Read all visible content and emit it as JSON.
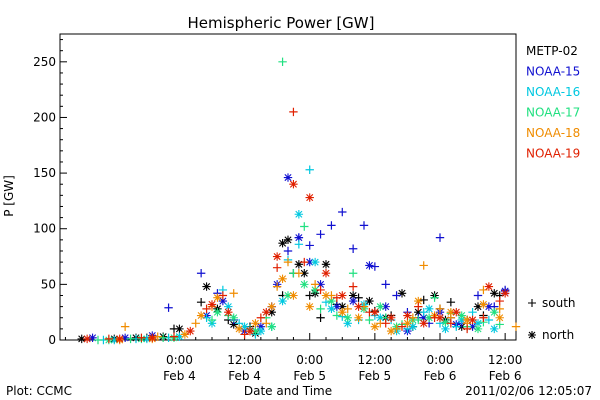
{
  "chart_data": {
    "type": "scatter",
    "title": "Hemispheric Power [GW]",
    "xlabel": "Date and Time",
    "ylabel": "P [GW]",
    "ylim": [
      0,
      275
    ],
    "xlim": [
      -22,
      62
    ],
    "x_unit": "hours since 2011-02-04 00:00",
    "y_ticks": [
      0,
      50,
      100,
      150,
      200,
      250
    ],
    "x_ticks": [
      {
        "x": 0,
        "time": "0:00",
        "date": "Feb 4"
      },
      {
        "x": 12,
        "time": "12:00",
        "date": "Feb 4"
      },
      {
        "x": 24,
        "time": "0:00",
        "date": "Feb 5"
      },
      {
        "x": 36,
        "time": "12:00",
        "date": "Feb 5"
      },
      {
        "x": 48,
        "time": "0:00",
        "date": "Feb 6"
      },
      {
        "x": 60,
        "time": "12:00",
        "date": "Feb 6"
      }
    ],
    "marker_legend": [
      {
        "symbol": "+",
        "label": "south"
      },
      {
        "symbol": "*",
        "label": "north"
      }
    ],
    "series": [
      {
        "name": "METP-02",
        "color": "#000000",
        "south": [
          [
            -6,
            2
          ],
          [
            -1,
            10
          ],
          [
            4,
            34
          ],
          [
            9,
            18
          ],
          [
            13,
            12
          ],
          [
            19,
            40
          ],
          [
            21,
            60
          ],
          [
            24,
            40
          ],
          [
            26,
            20
          ],
          [
            29,
            32
          ],
          [
            33,
            38
          ],
          [
            36,
            26
          ],
          [
            39,
            22
          ],
          [
            43,
            12
          ],
          [
            45,
            36
          ],
          [
            48,
            28
          ],
          [
            50,
            34
          ],
          [
            53,
            18
          ],
          [
            56,
            22
          ],
          [
            59,
            40
          ]
        ],
        "north": [
          [
            -18,
            1
          ],
          [
            -12,
            1
          ],
          [
            -8,
            2
          ],
          [
            -3,
            3
          ],
          [
            0,
            10
          ],
          [
            5,
            48
          ],
          [
            7,
            28
          ],
          [
            10,
            14
          ],
          [
            14,
            6
          ],
          [
            17,
            25
          ],
          [
            19,
            87
          ],
          [
            20,
            90
          ],
          [
            22,
            68
          ],
          [
            23,
            60
          ],
          [
            25,
            42
          ],
          [
            27,
            68
          ],
          [
            30,
            30
          ],
          [
            32,
            40
          ],
          [
            35,
            35
          ],
          [
            38,
            20
          ],
          [
            41,
            42
          ],
          [
            44,
            25
          ],
          [
            47,
            40
          ],
          [
            49,
            18
          ],
          [
            52,
            12
          ],
          [
            55,
            30
          ],
          [
            58,
            42
          ]
        ]
      },
      {
        "name": "NOAA-15",
        "color": "#1010d0",
        "south": [
          [
            -2,
            29
          ],
          [
            4,
            60
          ],
          [
            7,
            42
          ],
          [
            10,
            18
          ],
          [
            13,
            10
          ],
          [
            17,
            30
          ],
          [
            20,
            80
          ],
          [
            22,
            92
          ],
          [
            24,
            85
          ],
          [
            26,
            95
          ],
          [
            28,
            103
          ],
          [
            30,
            115
          ],
          [
            32,
            82
          ],
          [
            34,
            103
          ],
          [
            36,
            66
          ],
          [
            38,
            50
          ],
          [
            40,
            40
          ],
          [
            42,
            25
          ],
          [
            44,
            20
          ],
          [
            46,
            15
          ],
          [
            48,
            92
          ],
          [
            50,
            20
          ],
          [
            52,
            15
          ],
          [
            55,
            40
          ],
          [
            58,
            30
          ],
          [
            60,
            45
          ]
        ],
        "north": [
          [
            -16,
            2
          ],
          [
            -10,
            2
          ],
          [
            -5,
            4
          ],
          [
            5,
            22
          ],
          [
            8,
            35
          ],
          [
            12,
            8
          ],
          [
            15,
            12
          ],
          [
            18,
            50
          ],
          [
            20,
            146
          ],
          [
            22,
            92
          ],
          [
            24,
            70
          ],
          [
            26,
            50
          ],
          [
            29,
            30
          ],
          [
            32,
            35
          ],
          [
            35,
            67
          ],
          [
            38,
            30
          ],
          [
            42,
            8
          ],
          [
            45,
            20
          ],
          [
            48,
            25
          ],
          [
            51,
            14
          ],
          [
            54,
            12
          ],
          [
            57,
            30
          ],
          [
            60,
            44
          ]
        ]
      },
      {
        "name": "NOAA-16",
        "color": "#00c8e0",
        "south": [
          [
            -14,
            0
          ],
          [
            -8,
            1
          ],
          [
            -2,
            2
          ],
          [
            5,
            20
          ],
          [
            8,
            45
          ],
          [
            11,
            15
          ],
          [
            14,
            5
          ],
          [
            17,
            12
          ],
          [
            20,
            72
          ],
          [
            22,
            86
          ],
          [
            24,
            153
          ],
          [
            27,
            34
          ],
          [
            30,
            21
          ],
          [
            33,
            18
          ],
          [
            36,
            22
          ],
          [
            39,
            18
          ],
          [
            42,
            10
          ],
          [
            45,
            25
          ],
          [
            48,
            15
          ],
          [
            51,
            12
          ],
          [
            54,
            25
          ],
          [
            57,
            18
          ]
        ],
        "north": [
          [
            -12,
            0
          ],
          [
            -6,
            1
          ],
          [
            0,
            3
          ],
          [
            6,
            15
          ],
          [
            9,
            30
          ],
          [
            12,
            12
          ],
          [
            15,
            8
          ],
          [
            19,
            35
          ],
          [
            22,
            113
          ],
          [
            25,
            70
          ],
          [
            28,
            28
          ],
          [
            31,
            15
          ],
          [
            34,
            32
          ],
          [
            37,
            20
          ],
          [
            40,
            8
          ],
          [
            43,
            12
          ],
          [
            46,
            28
          ],
          [
            49,
            10
          ],
          [
            52,
            18
          ],
          [
            55,
            15
          ],
          [
            58,
            10
          ]
        ]
      },
      {
        "name": "NOAA-17",
        "color": "#20e080",
        "south": [
          [
            -15,
            0
          ],
          [
            -9,
            1
          ],
          [
            -3,
            2
          ],
          [
            6,
            18
          ],
          [
            9,
            22
          ],
          [
            13,
            10
          ],
          [
            16,
            20
          ],
          [
            19,
            250
          ],
          [
            21,
            60
          ],
          [
            23,
            102
          ],
          [
            26,
            28
          ],
          [
            29,
            22
          ],
          [
            32,
            60
          ],
          [
            35,
            18
          ],
          [
            38,
            20
          ],
          [
            41,
            14
          ],
          [
            44,
            18
          ],
          [
            47,
            38
          ],
          [
            50,
            24
          ],
          [
            53,
            12
          ],
          [
            56,
            16
          ],
          [
            59,
            14
          ]
        ],
        "north": [
          [
            -13,
            0
          ],
          [
            -7,
            1
          ],
          [
            -1,
            2
          ],
          [
            7,
            25
          ],
          [
            10,
            20
          ],
          [
            14,
            8
          ],
          [
            17,
            12
          ],
          [
            20,
            40
          ],
          [
            23,
            50
          ],
          [
            25,
            45
          ],
          [
            28,
            35
          ],
          [
            31,
            20
          ],
          [
            34,
            28
          ],
          [
            37,
            30
          ],
          [
            40,
            12
          ],
          [
            43,
            18
          ],
          [
            46,
            20
          ],
          [
            49,
            16
          ],
          [
            52,
            22
          ],
          [
            55,
            10
          ],
          [
            58,
            25
          ]
        ]
      },
      {
        "name": "NOAA-18",
        "color": "#f08c00",
        "south": [
          [
            -10,
            12
          ],
          [
            -4,
            3
          ],
          [
            3,
            15
          ],
          [
            6,
            30
          ],
          [
            10,
            42
          ],
          [
            13,
            8
          ],
          [
            16,
            15
          ],
          [
            18,
            48
          ],
          [
            20,
            70
          ],
          [
            22,
            60
          ],
          [
            25,
            50
          ],
          [
            28,
            40
          ],
          [
            31,
            28
          ],
          [
            34,
            30
          ],
          [
            37,
            15
          ],
          [
            40,
            10
          ],
          [
            43,
            20
          ],
          [
            45,
            67
          ],
          [
            48,
            28
          ],
          [
            50,
            20
          ],
          [
            53,
            15
          ],
          [
            56,
            45
          ],
          [
            59,
            28
          ],
          [
            62,
            12
          ]
        ],
        "north": [
          [
            -11,
            0
          ],
          [
            -5,
            1
          ],
          [
            1,
            5
          ],
          [
            4,
            22
          ],
          [
            7,
            38
          ],
          [
            11,
            10
          ],
          [
            14,
            15
          ],
          [
            17,
            30
          ],
          [
            19,
            55
          ],
          [
            21,
            40
          ],
          [
            24,
            30
          ],
          [
            27,
            40
          ],
          [
            30,
            25
          ],
          [
            33,
            20
          ],
          [
            36,
            12
          ],
          [
            39,
            8
          ],
          [
            42,
            15
          ],
          [
            44,
            35
          ],
          [
            47,
            22
          ],
          [
            50,
            25
          ],
          [
            53,
            18
          ],
          [
            56,
            32
          ],
          [
            59,
            20
          ]
        ]
      },
      {
        "name": "NOAA-19",
        "color": "#e02000",
        "south": [
          [
            -13,
            1
          ],
          [
            -7,
            2
          ],
          [
            -1,
            3
          ],
          [
            5,
            28
          ],
          [
            8,
            40
          ],
          [
            12,
            5
          ],
          [
            15,
            20
          ],
          [
            18,
            65
          ],
          [
            21,
            205
          ],
          [
            23,
            70
          ],
          [
            26,
            45
          ],
          [
            29,
            38
          ],
          [
            32,
            48
          ],
          [
            35,
            25
          ],
          [
            38,
            15
          ],
          [
            41,
            12
          ],
          [
            44,
            30
          ],
          [
            47,
            20
          ],
          [
            50,
            15
          ],
          [
            53,
            10
          ],
          [
            56,
            20
          ],
          [
            59,
            35
          ]
        ],
        "north": [
          [
            -17,
            1
          ],
          [
            -11,
            1
          ],
          [
            -5,
            2
          ],
          [
            2,
            8
          ],
          [
            6,
            32
          ],
          [
            9,
            25
          ],
          [
            13,
            8
          ],
          [
            16,
            25
          ],
          [
            18,
            75
          ],
          [
            21,
            140
          ],
          [
            24,
            128
          ],
          [
            27,
            60
          ],
          [
            30,
            40
          ],
          [
            33,
            30
          ],
          [
            36,
            25
          ],
          [
            39,
            20
          ],
          [
            42,
            22
          ],
          [
            45,
            15
          ],
          [
            48,
            20
          ],
          [
            51,
            25
          ],
          [
            54,
            18
          ],
          [
            57,
            48
          ],
          [
            60,
            42
          ]
        ]
      }
    ]
  },
  "footer": {
    "left": "Plot: CCMC",
    "right": "2011/02/06 12:05:07"
  }
}
